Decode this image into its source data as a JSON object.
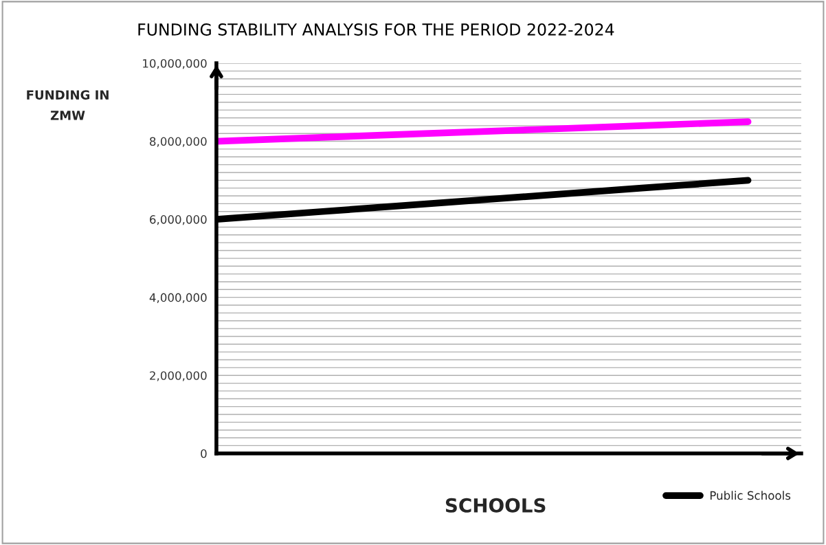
{
  "chart_data": {
    "type": "line",
    "title": "FUNDING STABILITY ANALYSIS FOR THE PERIOD 2022-2024",
    "xlabel": "SCHOOLS",
    "ylabel": "FUNDING IN\nZMW",
    "categories": [
      null,
      null,
      null,
      null,
      null,
      null
    ],
    "series": [
      {
        "color": "#ff00ff",
        "values": [
          8000000,
          8100000,
          8200000,
          8300000,
          8400000,
          8500000
        ]
      },
      {
        "name": "Public Schools",
        "color": "#000000",
        "values": [
          6000000,
          6200000,
          6400000,
          6600000,
          6800000,
          7000000
        ]
      }
    ],
    "ylim": [
      0,
      10000000
    ],
    "yticks": [
      {
        "value": 0,
        "label": "0"
      },
      {
        "value": 200000,
        "label": null
      },
      {
        "value": 400000,
        "label": null
      },
      {
        "value": 600000,
        "label": null
      },
      {
        "value": 800000,
        "label": null
      },
      {
        "value": 1000000,
        "label": null
      },
      {
        "value": 1200000,
        "label": null
      },
      {
        "value": 1400000,
        "label": null
      },
      {
        "value": 1600000,
        "label": null
      },
      {
        "value": 1800000,
        "label": null
      },
      {
        "value": 2000000,
        "label": "2,000,000"
      },
      {
        "value": 2200000,
        "label": null
      },
      {
        "value": 2400000,
        "label": null
      },
      {
        "value": 2600000,
        "label": null
      },
      {
        "value": 2800000,
        "label": null
      },
      {
        "value": 3000000,
        "label": null
      },
      {
        "value": 3200000,
        "label": null
      },
      {
        "value": 3400000,
        "label": null
      },
      {
        "value": 3600000,
        "label": null
      },
      {
        "value": 3800000,
        "label": null
      },
      {
        "value": 4000000,
        "label": "4,000,000"
      },
      {
        "value": 4200000,
        "label": null
      },
      {
        "value": 4400000,
        "label": null
      },
      {
        "value": 4600000,
        "label": null
      },
      {
        "value": 4800000,
        "label": null
      },
      {
        "value": 5000000,
        "label": null
      },
      {
        "value": 5200000,
        "label": null
      },
      {
        "value": 5400000,
        "label": null
      },
      {
        "value": 5600000,
        "label": null
      },
      {
        "value": 5800000,
        "label": null
      },
      {
        "value": 6000000,
        "label": "6,000,000"
      },
      {
        "value": 6200000,
        "label": null
      },
      {
        "value": 6400000,
        "label": null
      },
      {
        "value": 6600000,
        "label": null
      },
      {
        "value": 6800000,
        "label": null
      },
      {
        "value": 7000000,
        "label": null
      },
      {
        "value": 7200000,
        "label": null
      },
      {
        "value": 7400000,
        "label": null
      },
      {
        "value": 7600000,
        "label": null
      },
      {
        "value": 7800000,
        "label": null
      },
      {
        "value": 8000000,
        "label": "8,000,000"
      },
      {
        "value": 8200000,
        "label": null
      },
      {
        "value": 8400000,
        "label": null
      },
      {
        "value": 8600000,
        "label": null
      },
      {
        "value": 8800000,
        "label": null
      },
      {
        "value": 9000000,
        "label": null
      },
      {
        "value": 9200000,
        "label": null
      },
      {
        "value": 9400000,
        "label": null
      },
      {
        "value": 9600000,
        "label": null
      },
      {
        "value": 9800000,
        "label": null
      },
      {
        "value": 10000000,
        "label": "10,000,000"
      }
    ],
    "grid": "y",
    "legend": "bottom right",
    "marker": "none",
    "line_style": "solid"
  }
}
